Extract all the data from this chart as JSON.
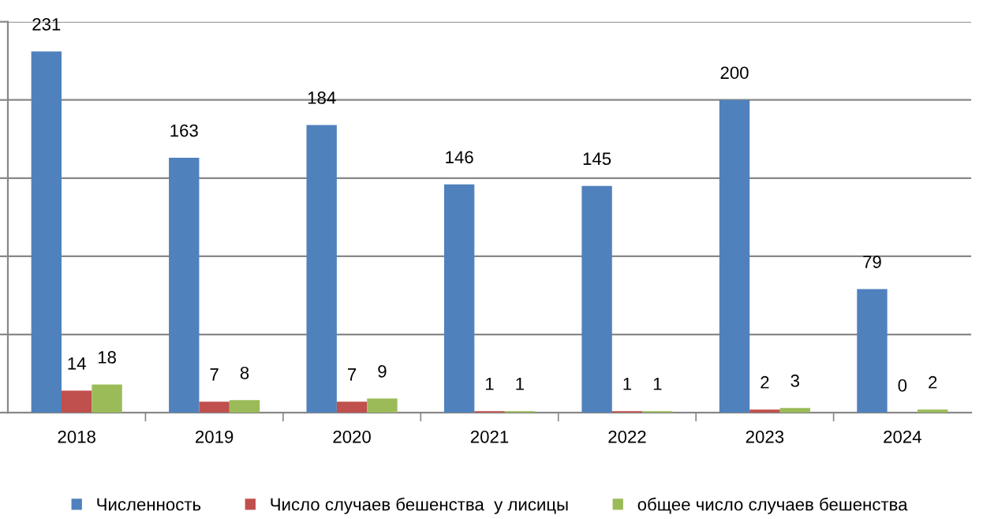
{
  "chart_data": {
    "type": "bar",
    "categories": [
      "2018",
      "2019",
      "2020",
      "2021",
      "2022",
      "2023",
      "2024"
    ],
    "series": [
      {
        "name": "Численность",
        "color": "#4f81bd",
        "values": [
          231,
          163,
          184,
          146,
          145,
          200,
          79
        ]
      },
      {
        "name": "Число случаев бешенства  у лисицы",
        "color": "#c0504d",
        "values": [
          14,
          7,
          7,
          1,
          1,
          2,
          0
        ]
      },
      {
        "name": "общее число случаев бешенства",
        "color": "#9bbb59",
        "values": [
          18,
          8,
          9,
          1,
          1,
          3,
          2
        ]
      }
    ],
    "ylim": [
      0,
      250
    ],
    "yticks": [
      {
        "value": 0,
        "label": null
      },
      {
        "value": 50,
        "label": null
      },
      {
        "value": 100,
        "label": null
      },
      {
        "value": 150,
        "label": null
      },
      {
        "value": 200,
        "label": null
      },
      {
        "value": 250,
        "label": null
      }
    ],
    "tick_labels": "x",
    "grid": "y",
    "legend": "bottom",
    "data_labels": true
  }
}
